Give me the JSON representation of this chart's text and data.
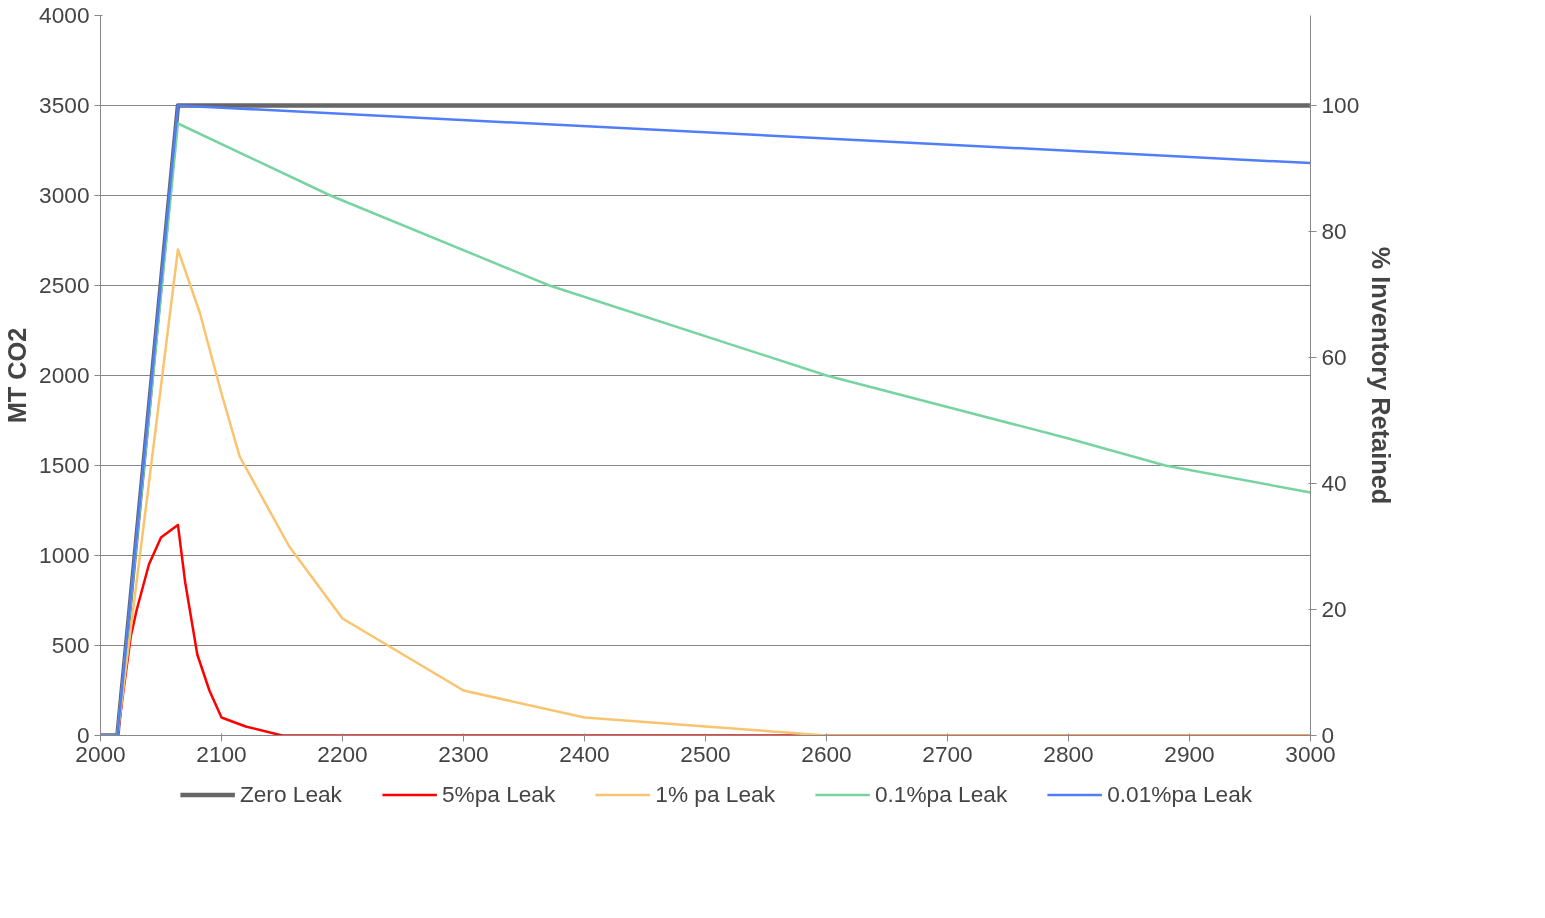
{
  "chart_data": {
    "type": "line",
    "ylabel": "MT CO2",
    "y2label": "% Inventory Retained",
    "xlim": [
      2000,
      3000
    ],
    "xticks": [
      2000,
      2100,
      2200,
      2300,
      2400,
      2500,
      2600,
      2700,
      2800,
      2900,
      3000
    ],
    "ylim": [
      0,
      4000
    ],
    "yticks": [
      0,
      500,
      1000,
      1500,
      2000,
      2500,
      3000,
      3500,
      4000
    ],
    "y2lim": [
      0,
      114.29
    ],
    "y2ticks": [
      0,
      20,
      40,
      60,
      80,
      100
    ],
    "grid": "y",
    "legend": "bottom",
    "line_style": "solid",
    "marker": "none",
    "series": [
      {
        "name": "Zero Leak",
        "color": "#666666",
        "x": [
          2000,
          2014,
          2064,
          3000
        ],
        "values": [
          0,
          0,
          3500,
          3500
        ]
      },
      {
        "name": "5%pa Leak",
        "color": "#ff0000",
        "x": [
          2000,
          2014,
          2025,
          2030,
          2040,
          2050,
          2060,
          2064,
          2070,
          2080,
          2090,
          2100,
          2120,
          2150,
          2200,
          3000
        ],
        "values": [
          0,
          0,
          550,
          700,
          950,
          1100,
          1150,
          1170,
          850,
          450,
          250,
          100,
          50,
          0,
          0,
          0
        ]
      },
      {
        "name": "1% pa Leak",
        "color": "#fac36e",
        "x": [
          2000,
          2014,
          2040,
          2064,
          2082,
          2100,
          2115,
          2156,
          2200,
          2300,
          2400,
          2500,
          2600,
          2700,
          2800,
          3000
        ],
        "values": [
          0,
          0,
          1400,
          2700,
          2350,
          1900,
          1550,
          1050,
          650,
          250,
          100,
          50,
          0,
          0,
          0,
          0
        ]
      },
      {
        "name": "0.1%pa Leak",
        "color": "#77d4a0",
        "x": [
          2000,
          2014,
          2064,
          2190,
          2371,
          2600,
          2800,
          2880,
          3000
        ],
        "values": [
          0,
          0,
          3400,
          3000,
          2500,
          2000,
          1650,
          1500,
          1350
        ]
      },
      {
        "name": "0.01%pa Leak",
        "color": "#4f7ef8",
        "x": [
          2000,
          2014,
          2064,
          3000
        ],
        "values": [
          0,
          0,
          3500,
          3180
        ]
      }
    ]
  }
}
